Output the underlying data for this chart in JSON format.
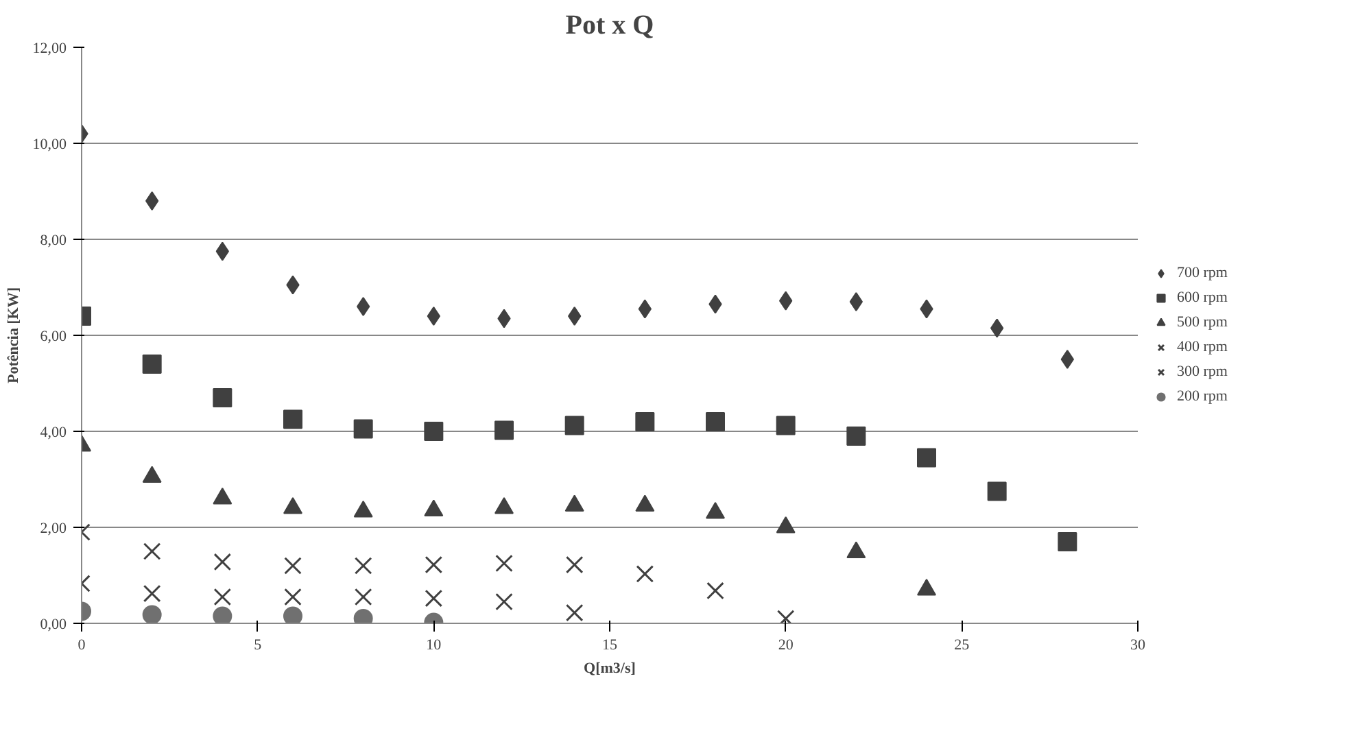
{
  "chart_data": {
    "type": "scatter",
    "title": "Pot x Q",
    "xlabel": "Q[m3/s]",
    "ylabel": "Potência [KW]",
    "xlim": [
      0,
      30
    ],
    "xticks": [
      0,
      5,
      10,
      15,
      20,
      25,
      30
    ],
    "ylim": [
      0,
      12
    ],
    "yticks": [
      {
        "value": 0,
        "label": "0,00"
      },
      {
        "value": 2,
        "label": "2,00"
      },
      {
        "value": 4,
        "label": "4,00"
      },
      {
        "value": 6,
        "label": "6,00"
      },
      {
        "value": 8,
        "label": "8,00"
      },
      {
        "value": 10,
        "label": "10,00"
      },
      {
        "value": 12,
        "label": "12,00"
      }
    ],
    "grid": "y",
    "legend": "right",
    "series": [
      {
        "name": "700 rpm",
        "color": "#404040",
        "marker": "diamond",
        "x": [
          0,
          2,
          4,
          6,
          8,
          10,
          12,
          14,
          16,
          18,
          20,
          22,
          24,
          26,
          28
        ],
        "values": [
          10.2,
          8.8,
          7.75,
          7.05,
          6.6,
          6.4,
          6.35,
          6.4,
          6.55,
          6.65,
          6.72,
          6.7,
          6.55,
          6.15,
          5.5
        ]
      },
      {
        "name": "600 rpm",
        "color": "#404040",
        "marker": "square",
        "x": [
          0,
          2,
          4,
          6,
          8,
          10,
          12,
          14,
          16,
          18,
          20,
          22,
          24,
          26,
          28
        ],
        "values": [
          6.4,
          5.4,
          4.7,
          4.25,
          4.05,
          4.0,
          4.02,
          4.12,
          4.2,
          4.2,
          4.12,
          3.9,
          3.45,
          2.75,
          1.7
        ]
      },
      {
        "name": "500 rpm",
        "color": "#404040",
        "marker": "triangle",
        "x": [
          0,
          2,
          4,
          6,
          8,
          10,
          12,
          14,
          16,
          18,
          20,
          22,
          24
        ],
        "values": [
          3.7,
          3.05,
          2.6,
          2.4,
          2.33,
          2.35,
          2.4,
          2.45,
          2.45,
          2.3,
          2.0,
          1.48,
          0.7
        ]
      },
      {
        "name": "400 rpm",
        "color": "#404040",
        "marker": "cross",
        "x": [
          0,
          2,
          4,
          6,
          8,
          10,
          12,
          14,
          16,
          18,
          20
        ],
        "values": [
          1.9,
          1.5,
          1.28,
          1.2,
          1.2,
          1.22,
          1.25,
          1.22,
          1.03,
          0.68,
          0.1
        ]
      },
      {
        "name": "300 rpm",
        "color": "#404040",
        "marker": "cross",
        "x": [
          0,
          2,
          4,
          6,
          8,
          10,
          12,
          14
        ],
        "values": [
          0.83,
          0.62,
          0.55,
          0.55,
          0.55,
          0.52,
          0.45,
          0.22
        ]
      },
      {
        "name": "200 rpm",
        "color": "#707070",
        "marker": "circle",
        "x": [
          0,
          2,
          4,
          6,
          8,
          10
        ],
        "values": [
          0.25,
          0.18,
          0.15,
          0.15,
          0.1,
          0.02
        ]
      }
    ]
  }
}
